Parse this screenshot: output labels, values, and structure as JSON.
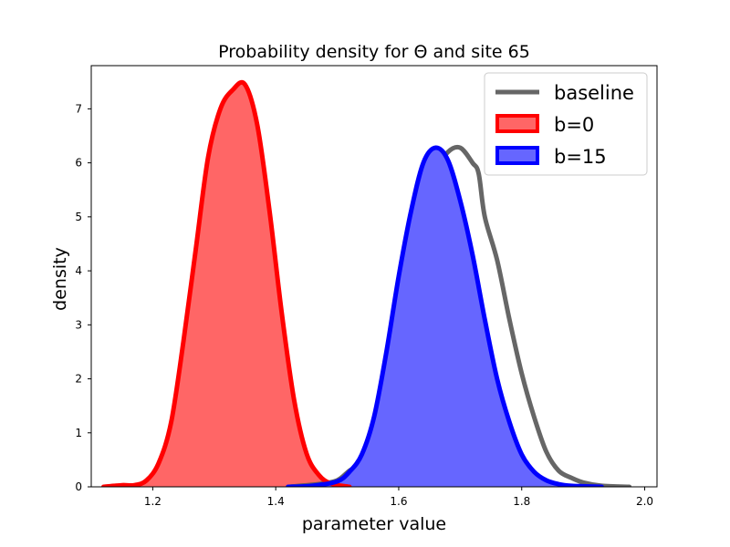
{
  "chart_data": {
    "type": "area",
    "title": "Probability density for Θ and site 65",
    "xlabel": "parameter value",
    "ylabel": "density",
    "xlim": [
      1.1,
      2.02
    ],
    "ylim": [
      0,
      7.8
    ],
    "xticks": [
      "1.2",
      "1.4",
      "1.6",
      "1.8",
      "2.0"
    ],
    "yticks": [
      "0",
      "1",
      "2",
      "3",
      "4",
      "5",
      "6",
      "7"
    ],
    "grid": false,
    "legend_position": "top-right",
    "series": [
      {
        "name": "baseline",
        "style": "line",
        "color": "#555555",
        "x": [
          1.42,
          1.47,
          1.5,
          1.52,
          1.54,
          1.56,
          1.58,
          1.6,
          1.62,
          1.64,
          1.66,
          1.68,
          1.7,
          1.72,
          1.73,
          1.74,
          1.76,
          1.78,
          1.8,
          1.82,
          1.84,
          1.86,
          1.88,
          1.9,
          1.93,
          1.975
        ],
        "y": [
          0,
          0.05,
          0.12,
          0.3,
          0.45,
          0.9,
          1.5,
          2.7,
          3.9,
          5.0,
          5.85,
          6.2,
          6.28,
          6.0,
          5.8,
          5.0,
          4.2,
          3.1,
          2.1,
          1.3,
          0.65,
          0.3,
          0.17,
          0.08,
          0.02,
          0
        ]
      },
      {
        "name": "b=0",
        "style": "filled",
        "color": "#ff0000",
        "fill": "#ff6666",
        "x": [
          1.12,
          1.15,
          1.17,
          1.19,
          1.21,
          1.23,
          1.25,
          1.27,
          1.29,
          1.31,
          1.33,
          1.35,
          1.37,
          1.39,
          1.41,
          1.43,
          1.45,
          1.47,
          1.49,
          1.52
        ],
        "y": [
          0,
          0.03,
          0.03,
          0.12,
          0.45,
          1.2,
          2.7,
          4.4,
          6.1,
          7.0,
          7.35,
          7.45,
          6.7,
          5.1,
          3.2,
          1.6,
          0.62,
          0.22,
          0.06,
          0
        ]
      },
      {
        "name": "b=15",
        "style": "filled",
        "color": "#0000ff",
        "fill": "#6666ff",
        "x": [
          1.42,
          1.46,
          1.5,
          1.52,
          1.54,
          1.56,
          1.58,
          1.6,
          1.62,
          1.64,
          1.66,
          1.68,
          1.7,
          1.72,
          1.74,
          1.76,
          1.78,
          1.8,
          1.82,
          1.84,
          1.86,
          1.88,
          1.93
        ],
        "y": [
          0,
          0.02,
          0.1,
          0.28,
          0.6,
          1.3,
          2.5,
          3.9,
          5.1,
          6.0,
          6.28,
          6.05,
          5.3,
          4.3,
          3.1,
          2.0,
          1.2,
          0.6,
          0.28,
          0.12,
          0.05,
          0.02,
          0
        ]
      }
    ]
  }
}
